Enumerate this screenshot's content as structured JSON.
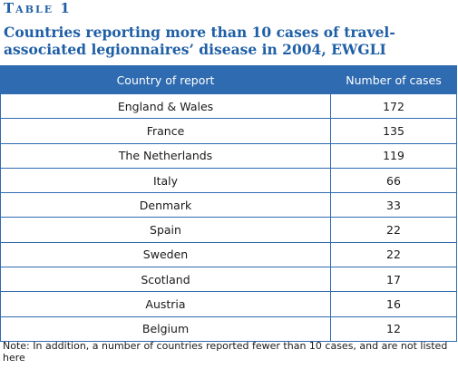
{
  "table_label": "Table 1",
  "caption": "Countries reporting more than 10 cases of travel-associated legionnaires’ disease in 2004, EWGLI",
  "headers": {
    "country": "Country of report",
    "cases": "Number of cases"
  },
  "rows": [
    {
      "country": "England & Wales",
      "cases": "172"
    },
    {
      "country": "France",
      "cases": "135"
    },
    {
      "country": "The Netherlands",
      "cases": "119"
    },
    {
      "country": "Italy",
      "cases": "66"
    },
    {
      "country": "Denmark",
      "cases": "33"
    },
    {
      "country": "Spain",
      "cases": "22"
    },
    {
      "country": "Sweden",
      "cases": "22"
    },
    {
      "country": "Scotland",
      "cases": "17"
    },
    {
      "country": "Austria",
      "cases": "16"
    },
    {
      "country": "Belgium",
      "cases": "12"
    }
  ],
  "note": "Note: In addition, a number of countries reported fewer than 10 cases, and are not listed here",
  "colors": {
    "accent": "#1f5fa6",
    "header_bg": "#2f6bb0",
    "border": "#2f6bb0"
  }
}
